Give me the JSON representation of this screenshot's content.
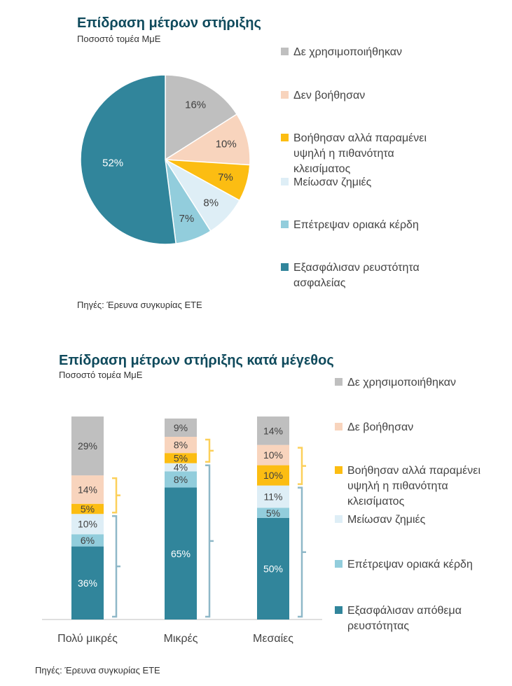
{
  "colors": {
    "unused": "#bfbfbf",
    "not_helped": "#f8d4bd",
    "helped_risk": "#fcbd12",
    "reduced_losses": "#deeef6",
    "marginal_profit": "#92cddc",
    "liquidity": "#31859b",
    "bracket_yellow": "#fcd05a",
    "bracket_blue": "#8fb8c8"
  },
  "pie": {
    "title": "Επίδραση μέτρων στήριξης",
    "subtitle": "Ποσοστό τομέα ΜμΕ",
    "source": "Πηγές: Έρευνα συγκυρίας ΕΤΕ",
    "legend": [
      {
        "label": "Δε χρησιμοποιήθηκαν",
        "color_key": "unused"
      },
      {
        "label": "Δεν βοήθησαν",
        "color_key": "not_helped"
      },
      {
        "label": "Βοήθησαν αλλά παραμένει υψηλή η πιθανότητα κλεισίματος",
        "color_key": "helped_risk"
      },
      {
        "label": "Μείωσαν ζημιές",
        "color_key": "reduced_losses"
      },
      {
        "label": "Επέτρεψαν οριακά κέρδη",
        "color_key": "marginal_profit"
      },
      {
        "label": "Εξασφάλισαν ρευστότητα ασφαλείας",
        "color_key": "liquidity"
      }
    ]
  },
  "bars": {
    "title": "Επίδραση μέτρων στήριξης κατά μέγεθος",
    "subtitle": "Ποσοστό τομέα ΜμΕ",
    "source": "Πηγές: Έρευνα συγκυρίας ΕΤΕ",
    "legend": [
      {
        "label": "Δε χρησιμοποιήθηκαν",
        "color_key": "unused"
      },
      {
        "label": "Δε βοήθησαν",
        "color_key": "not_helped"
      },
      {
        "label": "Βοήθησαν αλλά παραμένει υψηλή η πιθανότητα κλεισίματος",
        "color_key": "helped_risk"
      },
      {
        "label": "Μείωσαν ζημιές",
        "color_key": "reduced_losses"
      },
      {
        "label": "Επέτρεψαν οριακά κέρδη",
        "color_key": "marginal_profit"
      },
      {
        "label": "Εξασφάλισαν απόθεμα ρευστότητας",
        "color_key": "liquidity"
      }
    ]
  },
  "chart_data": [
    {
      "type": "pie",
      "title": "Επίδραση μέτρων στήριξης",
      "subtitle": "Ποσοστό τομέα ΜμΕ",
      "slices": [
        {
          "label": "Δε χρησιμοποιήθηκαν",
          "value": 16,
          "value_label": "16%",
          "color_key": "unused"
        },
        {
          "label": "Δεν βοήθησαν",
          "value": 10,
          "value_label": "10%",
          "color_key": "not_helped"
        },
        {
          "label": "Βοήθησαν αλλά παραμένει υψηλή η πιθανότητα κλεισίματος",
          "value": 7,
          "value_label": "7%",
          "color_key": "helped_risk"
        },
        {
          "label": "Μείωσαν ζημιές",
          "value": 8,
          "value_label": "8%",
          "color_key": "reduced_losses"
        },
        {
          "label": "Επέτρεψαν οριακά κέρδη",
          "value": 7,
          "value_label": "7%",
          "color_key": "marginal_profit"
        },
        {
          "label": "Εξασφάλισαν ρευστότητα ασφαλείας",
          "value": 52,
          "value_label": "52%",
          "color_key": "liquidity"
        }
      ],
      "legend_position": "right"
    },
    {
      "type": "bar",
      "stacked": true,
      "title": "Επίδραση μέτρων στήριξης κατά μέγεθος",
      "subtitle": "Ποσοστό τομέα ΜμΕ",
      "categories": [
        "Πολύ μικρές",
        "Μικρές",
        "Μεσαίες"
      ],
      "series": [
        {
          "name": "Εξασφάλισαν απόθεμα ρευστότητας",
          "color_key": "liquidity",
          "values": [
            36,
            65,
            50
          ],
          "value_labels": [
            "36%",
            "65%",
            "50%"
          ]
        },
        {
          "name": "Επέτρεψαν οριακά κέρδη",
          "color_key": "marginal_profit",
          "values": [
            6,
            8,
            5
          ],
          "value_labels": [
            "6%",
            "8%",
            "5%"
          ]
        },
        {
          "name": "Μείωσαν ζημιές",
          "color_key": "reduced_losses",
          "values": [
            10,
            4,
            11
          ],
          "value_labels": [
            "10%",
            "4%",
            "11%"
          ]
        },
        {
          "name": "Βοήθησαν αλλά παραμένει υψηλή η πιθανότητα κλεισίματος",
          "color_key": "helped_risk",
          "values": [
            5,
            5,
            10
          ],
          "value_labels": [
            "5%",
            "5%",
            "10%"
          ]
        },
        {
          "name": "Δε βοήθησαν",
          "color_key": "not_helped",
          "values": [
            14,
            8,
            10
          ],
          "value_labels": [
            "14%",
            "8%",
            "10%"
          ]
        },
        {
          "name": "Δε χρησιμοποιήθηκαν",
          "color_key": "unused",
          "values": [
            29,
            9,
            14
          ],
          "value_labels": [
            "29%",
            "9%",
            "14%"
          ]
        }
      ],
      "ylim": [
        0,
        100
      ],
      "legend_position": "right"
    }
  ]
}
